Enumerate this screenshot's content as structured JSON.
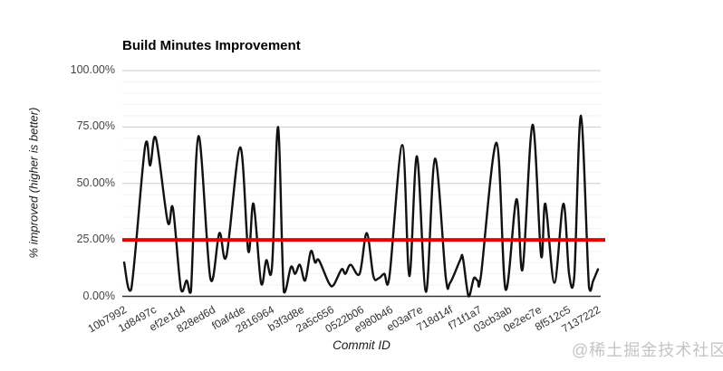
{
  "watermark": {
    "text": "@稀土掘金技术社区",
    "color": "#c4c4c4"
  },
  "colors": {
    "background": "#ffffff",
    "grid_major": "#cccccc",
    "grid_minor": "#f3f3f3",
    "axis_line": "#333333",
    "tick_label": "#444444",
    "series_line": "#111111",
    "reference_line": "#e60000"
  },
  "chart_data": {
    "type": "line",
    "title": "Build Minutes Improvement",
    "xlabel": "Commit ID",
    "ylabel": "% improved (higher is better)",
    "ylim": [
      0,
      100
    ],
    "grid": {
      "major_step_pct": 25,
      "minor_step_pct": 5
    },
    "legend_position": "none",
    "y_ticks": [
      {
        "label": "100.00%",
        "value": 100
      },
      {
        "label": "75.00%",
        "value": 75
      },
      {
        "label": "50.00%",
        "value": 50
      },
      {
        "label": "25.00%",
        "value": 25
      },
      {
        "label": "0.00%",
        "value": 0
      }
    ],
    "x_tick_labels": [
      "10b7992",
      "1d8497c",
      "ef2e1d4",
      "828ed6d",
      "f0af4de",
      "2816964",
      "b3f3d8e",
      "2a5c656",
      "0522b06",
      "e980b46",
      "e03af7e",
      "718d14f",
      "f71f1a7",
      "03cb3ab",
      "0e2ec7e",
      "8f512c5",
      "7137222"
    ],
    "reference_line": {
      "value_pct": 25,
      "color": "#e60000"
    },
    "series": [
      {
        "name": "% improved",
        "color": "#111111",
        "points_x_pct_of_axis__y_pct_improved": [
          [
            0,
            15
          ],
          [
            1.5,
            3
          ],
          [
            4.4,
            66
          ],
          [
            5.5,
            58
          ],
          [
            6.7,
            70
          ],
          [
            9.2,
            33
          ],
          [
            10.3,
            39
          ],
          [
            12,
            3
          ],
          [
            13.2,
            7
          ],
          [
            14.1,
            2
          ],
          [
            15.7,
            71
          ],
          [
            18.2,
            8
          ],
          [
            20.1,
            28
          ],
          [
            21.6,
            18
          ],
          [
            24.5,
            66
          ],
          [
            26.2,
            20
          ],
          [
            27.3,
            41
          ],
          [
            28.9,
            6
          ],
          [
            30,
            16
          ],
          [
            31.2,
            13
          ],
          [
            32.5,
            75
          ],
          [
            33.7,
            2
          ],
          [
            35.2,
            13
          ],
          [
            36.1,
            10
          ],
          [
            37.1,
            14
          ],
          [
            38.2,
            7
          ],
          [
            39.4,
            20
          ],
          [
            40.3,
            15
          ],
          [
            41.1,
            16
          ],
          [
            43.2,
            6
          ],
          [
            44.2,
            5
          ],
          [
            45.9,
            12
          ],
          [
            46.7,
            10
          ],
          [
            47.8,
            14
          ],
          [
            49.7,
            10
          ],
          [
            51.2,
            28
          ],
          [
            52.6,
            9
          ],
          [
            53.7,
            8
          ],
          [
            54.9,
            10
          ],
          [
            56,
            9
          ],
          [
            58.7,
            67
          ],
          [
            60.2,
            9
          ],
          [
            61.8,
            62
          ],
          [
            63.7,
            2
          ],
          [
            65.6,
            61
          ],
          [
            67.9,
            8
          ],
          [
            68.8,
            6
          ],
          [
            70.9,
            16
          ],
          [
            71.5,
            17
          ],
          [
            72.7,
            0
          ],
          [
            73.8,
            8
          ],
          [
            74.6,
            7
          ],
          [
            75.3,
            9
          ],
          [
            78.6,
            68
          ],
          [
            80.5,
            3
          ],
          [
            82.8,
            43
          ],
          [
            84.1,
            12
          ],
          [
            86.2,
            76
          ],
          [
            88,
            18
          ],
          [
            88.9,
            41
          ],
          [
            90.8,
            6
          ],
          [
            92.7,
            41
          ],
          [
            93.9,
            10
          ],
          [
            95,
            9
          ],
          [
            96.4,
            80
          ],
          [
            98.1,
            4
          ],
          [
            99,
            7
          ],
          [
            100,
            12
          ]
        ]
      }
    ]
  }
}
